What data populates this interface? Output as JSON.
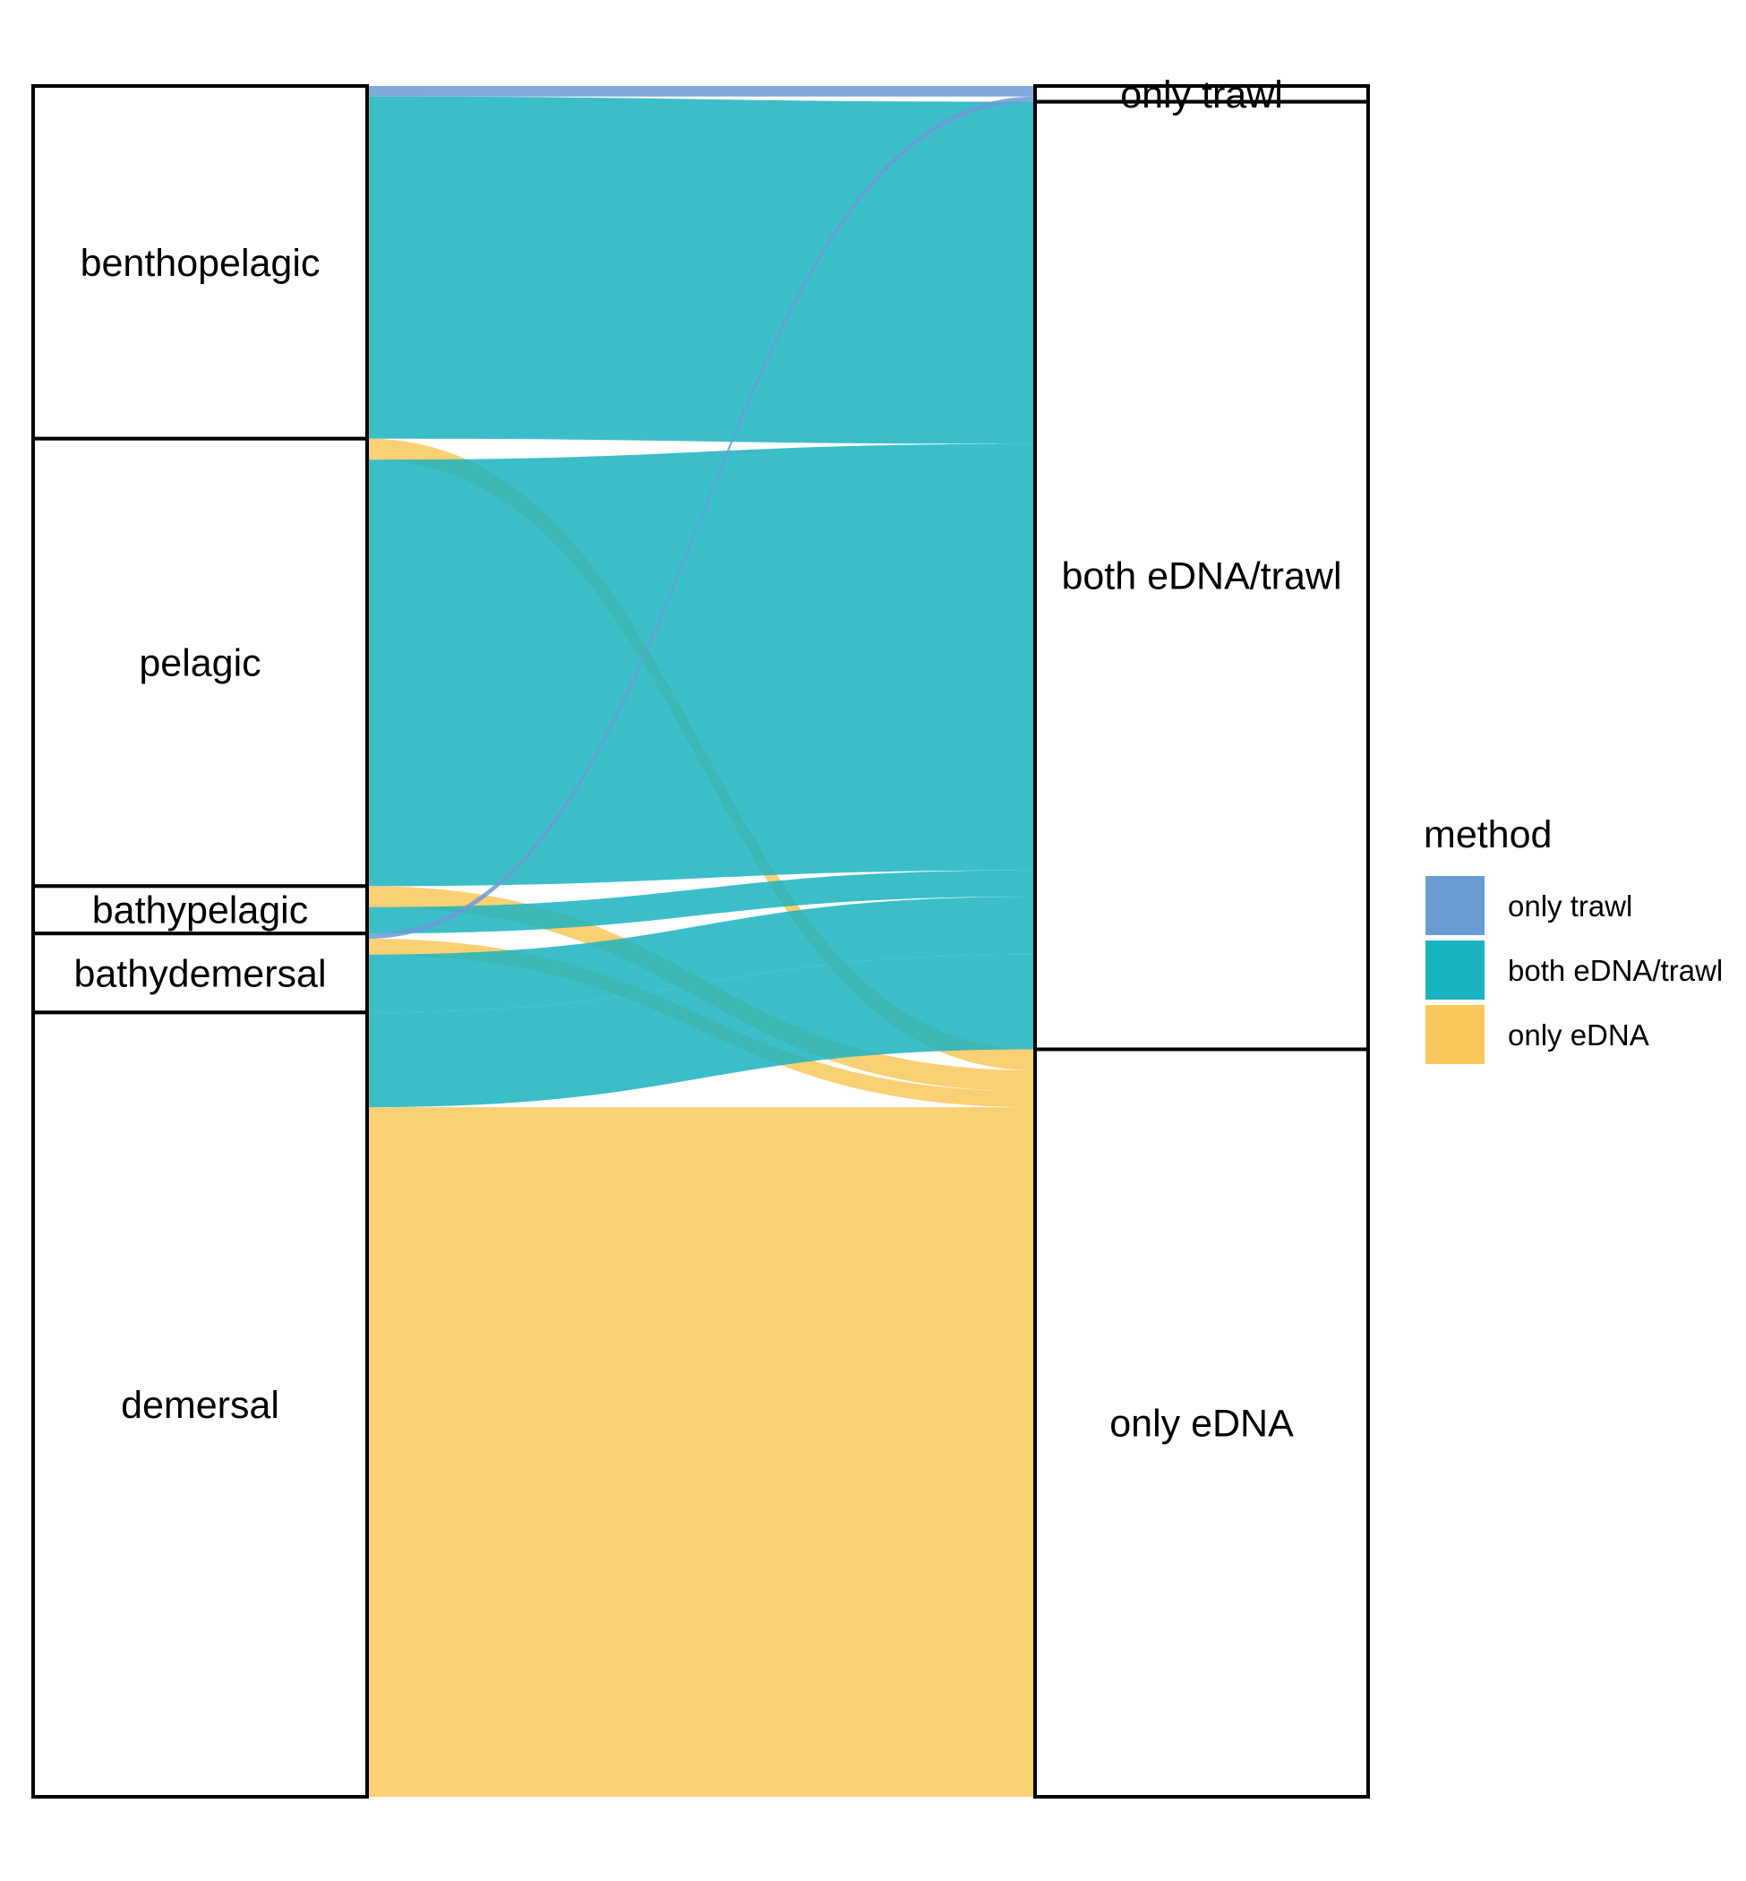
{
  "chart_data": {
    "type": "alluvial",
    "axes": [
      {
        "id": "habitat",
        "label": "",
        "strata": [
          "benthopelagic",
          "pelagic",
          "bathypelagic",
          "bathydemersal",
          "demersal"
        ]
      },
      {
        "id": "method",
        "label": "",
        "strata": [
          "only trawl",
          "both eDNA/trawl",
          "only eDNA"
        ]
      }
    ],
    "legend": {
      "title": "method",
      "position": "right",
      "entries": [
        {
          "label": "only trawl",
          "color": "#6a9bd5"
        },
        {
          "label": "both eDNA/trawl",
          "color": "#1ab3c0"
        },
        {
          "label": "only eDNA",
          "color": "#f9c85c"
        }
      ]
    },
    "flows": [
      {
        "from": "benthopelagic",
        "to": "only trawl",
        "method": "only trawl",
        "value": 1
      },
      {
        "from": "benthopelagic",
        "to": "both eDNA/trawl",
        "method": "both eDNA/trawl",
        "value": 32.5
      },
      {
        "from": "pelagic",
        "to": "only eDNA",
        "method": "only eDNA",
        "value": 2
      },
      {
        "from": "pelagic",
        "to": "both eDNA/trawl",
        "method": "both eDNA/trawl",
        "value": 40.5
      },
      {
        "from": "bathypelagic",
        "to": "only eDNA",
        "method": "only eDNA",
        "value": 2
      },
      {
        "from": "bathypelagic",
        "to": "both eDNA/trawl",
        "method": "both eDNA/trawl",
        "value": 2.5
      },
      {
        "from": "bathydemersal",
        "to": "only trawl",
        "method": "only trawl",
        "value": 0.5
      },
      {
        "from": "bathydemersal",
        "to": "only eDNA",
        "method": "only eDNA",
        "value": 1.5
      },
      {
        "from": "bathydemersal",
        "to": "both eDNA/trawl",
        "method": "both eDNA/trawl",
        "value": 5.5
      },
      {
        "from": "demersal",
        "to": "both eDNA/trawl",
        "method": "both eDNA/trawl",
        "value": 9
      },
      {
        "from": "demersal",
        "to": "only eDNA",
        "method": "only eDNA",
        "value": 65.5
      }
    ]
  }
}
